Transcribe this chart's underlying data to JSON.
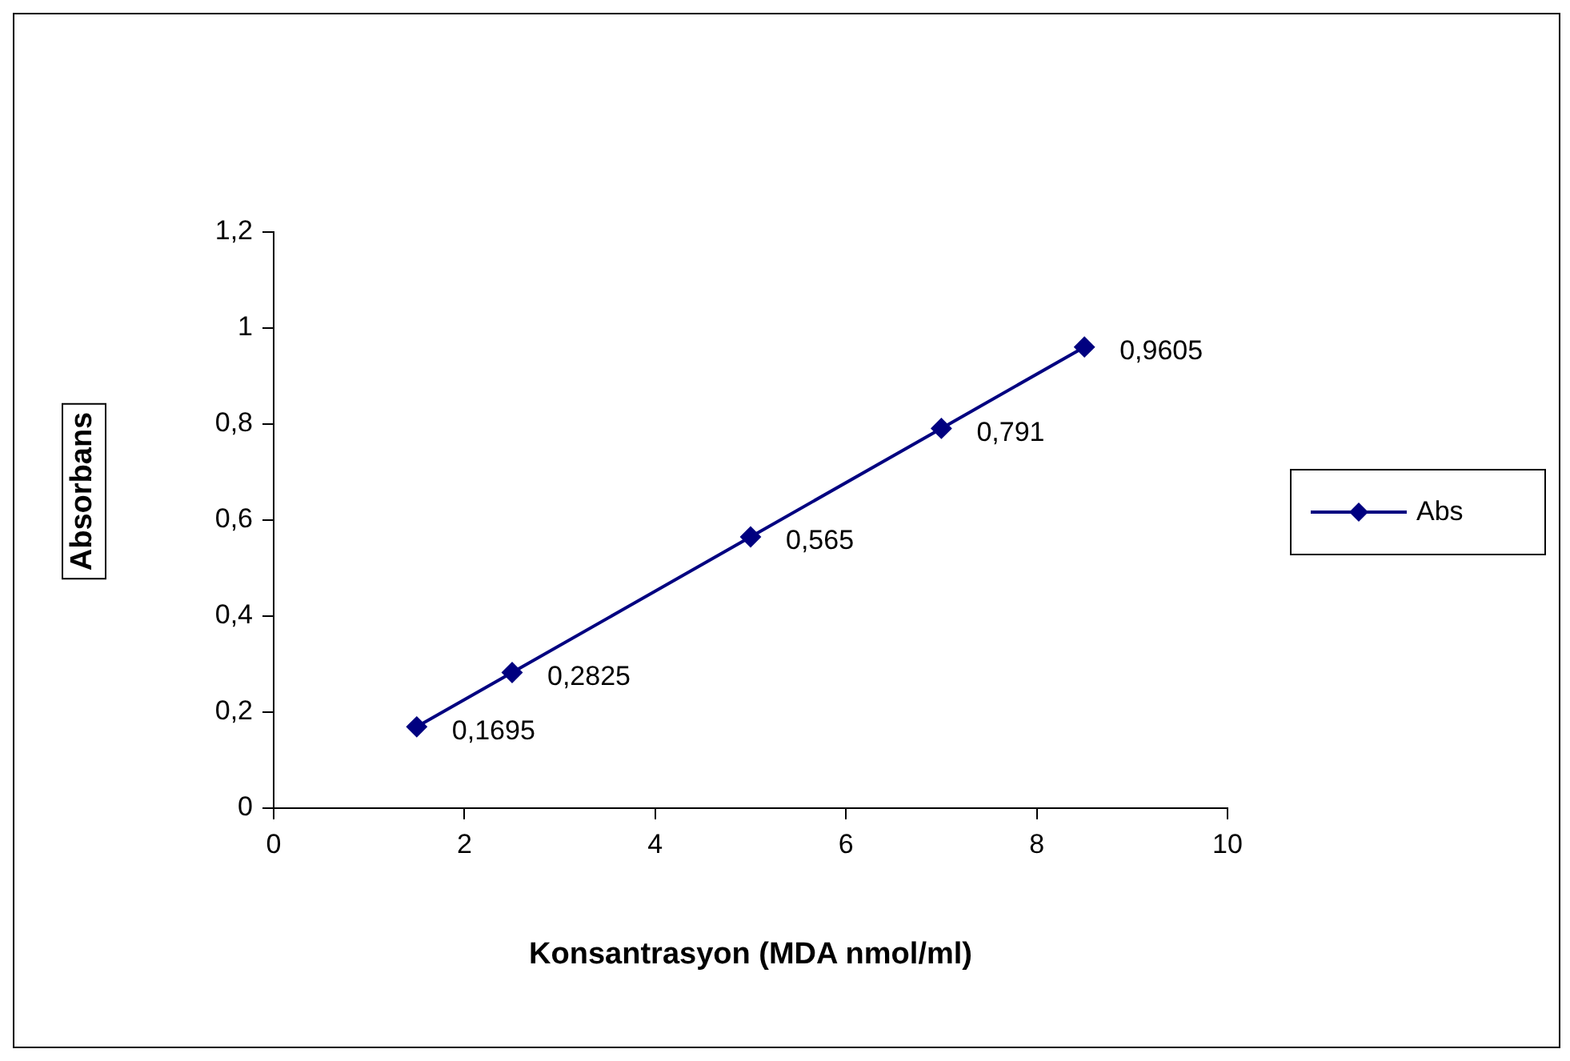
{
  "chart_data": {
    "type": "line",
    "xlabel": "Konsantrasyon (MDA nmol/ml)",
    "ylabel": "Absorbans",
    "x": [
      1.5,
      2.5,
      5,
      7,
      8.5
    ],
    "series": [
      {
        "name": "Abs",
        "color": "#000080",
        "values": [
          0.1695,
          0.2825,
          0.565,
          0.791,
          0.9605
        ],
        "value_labels": [
          "0,1695",
          "0,2825",
          "0,565",
          "0,791",
          "0,9605"
        ]
      }
    ],
    "xlim": [
      0,
      10
    ],
    "xticks": [
      0,
      2,
      4,
      6,
      8,
      10
    ],
    "ylim": [
      0,
      1.2
    ],
    "yticks": [
      0,
      {
        "value": 0.2,
        "label": "0,2"
      },
      {
        "value": 0.4,
        "label": "0,4"
      },
      {
        "value": 0.6,
        "label": "0,6"
      },
      {
        "value": 0.8,
        "label": "0,8"
      },
      1,
      {
        "value": 1.2,
        "label": "1,2"
      }
    ],
    "grid": false,
    "legend": "right",
    "marker": "diamond",
    "line_style": "solid"
  }
}
